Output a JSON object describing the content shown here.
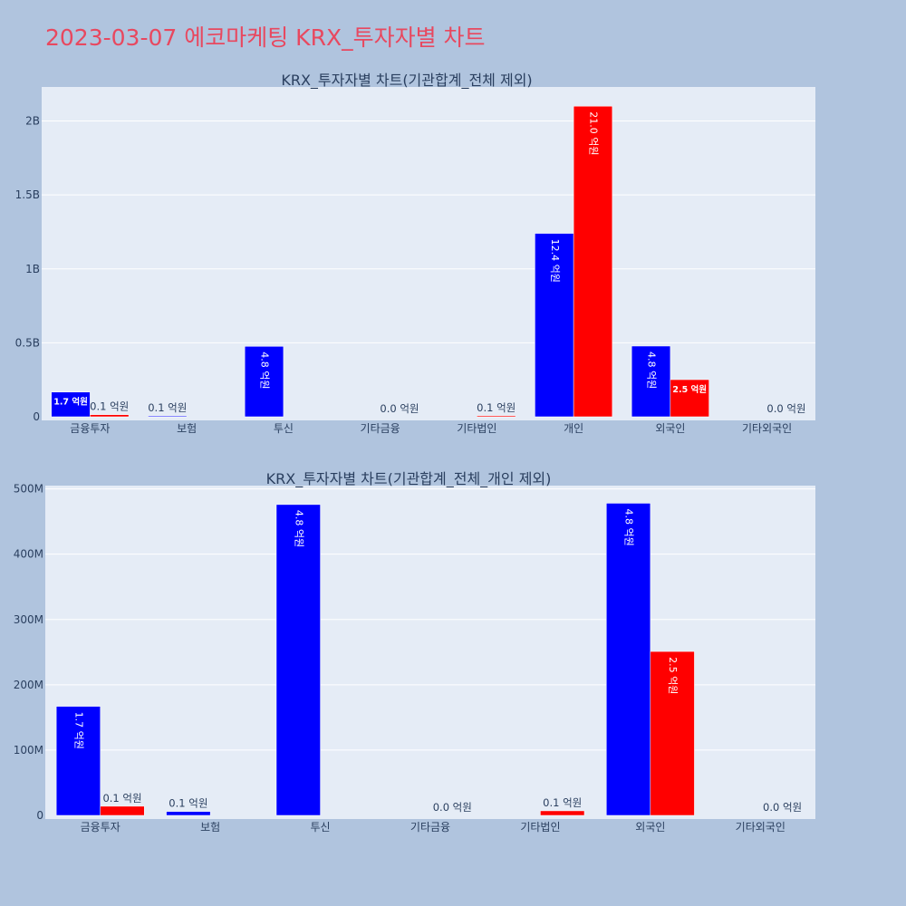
{
  "header": {
    "title": "2023-03-07 에코마케팅 KRX_투자자별 차트"
  },
  "colors": {
    "background": "#b0c4de",
    "plot_bg": "#e5ecf6",
    "title": "#e8485f",
    "buy": "#0000ff",
    "sell": "#ff0000",
    "grid": "#ffffff",
    "text": "#2a3f5f"
  },
  "chart_data": [
    {
      "type": "bar",
      "title": "KRX_투자자별 차트(기관합계_전체 제외)",
      "categories": [
        "금융투자",
        "보험",
        "투신",
        "기타금융",
        "기타법인",
        "개인",
        "외국인",
        "기타외국인"
      ],
      "series": [
        {
          "color": "#0000ff",
          "values": [
            167000000,
            6000000,
            476000000,
            0,
            0,
            1240000000,
            478000000,
            0
          ],
          "labels": [
            "1.7 억원",
            "0.1 억원",
            "4.8 억원",
            "",
            "",
            "12.4 억원",
            "4.8 억원",
            ""
          ]
        },
        {
          "color": "#ff0000",
          "values": [
            14000000,
            0,
            0,
            0,
            7000000,
            2100000000,
            251000000,
            0
          ],
          "labels": [
            "0.1 억원",
            "",
            "",
            "0.0 억원",
            "0.1 억원",
            "21.0 억원",
            "2.5 억원",
            "0.0 억원"
          ]
        }
      ],
      "yticks": [
        0,
        500000000,
        1000000000,
        1500000000,
        2000000000
      ],
      "ytick_labels": [
        "0",
        "0.5B",
        "1B",
        "1.5B",
        "2B"
      ],
      "ylim": [
        0,
        2230000000
      ],
      "grid": true
    },
    {
      "type": "bar",
      "title": "KRX_투자자별 차트(기관합계_전체_개인 제외)",
      "categories": [
        "금융투자",
        "보험",
        "투신",
        "기타금융",
        "기타법인",
        "외국인",
        "기타외국인"
      ],
      "series": [
        {
          "color": "#0000ff",
          "values": [
            167000000,
            6000000,
            476000000,
            0,
            0,
            478000000,
            0
          ],
          "labels": [
            "1.7 억원",
            "0.1 억원",
            "4.8 억원",
            "",
            "",
            "4.8 억원",
            ""
          ]
        },
        {
          "color": "#ff0000",
          "values": [
            14000000,
            0,
            0,
            0,
            7000000,
            251000000,
            0
          ],
          "labels": [
            "0.1 억원",
            "",
            "",
            "0.0 억원",
            "0.1 억원",
            "2.5 억원",
            "0.0 억원"
          ]
        }
      ],
      "yticks": [
        0,
        100000000,
        200000000,
        300000000,
        400000000,
        500000000
      ],
      "ytick_labels": [
        "0",
        "100M",
        "200M",
        "300M",
        "400M",
        "500M"
      ],
      "ylim": [
        0,
        505000000
      ],
      "grid": true
    }
  ]
}
